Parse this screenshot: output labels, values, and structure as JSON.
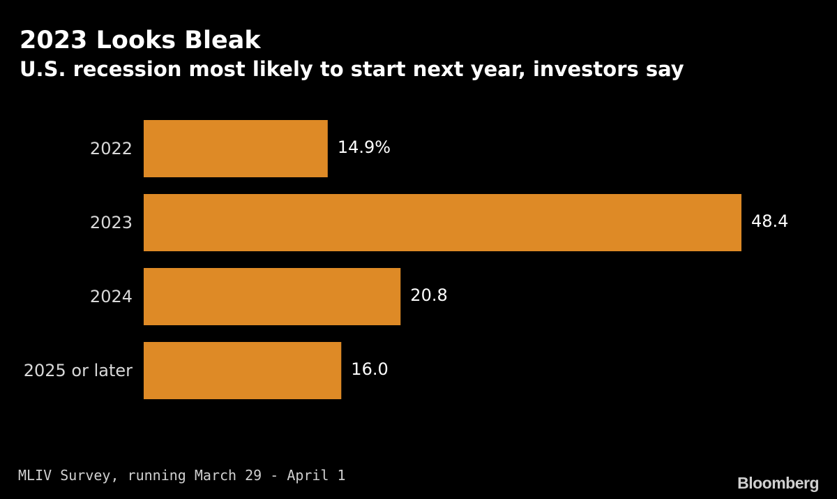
{
  "header": {
    "title": "2023 Looks Bleak",
    "subtitle": "U.S. recession most likely to start next year, investors say"
  },
  "footer": {
    "source": "MLIV Survey, running March 29 - April 1",
    "brand": "Bloomberg"
  },
  "colors": {
    "background": "#000000",
    "bar": "#de8a26",
    "text": "#ffffff"
  },
  "chart_data": {
    "type": "bar",
    "orientation": "horizontal",
    "title": "2023 Looks Bleak",
    "subtitle": "U.S. recession most likely to start next year, investors say",
    "categories": [
      "2022",
      "2023",
      "2024",
      "2025 or later"
    ],
    "values": [
      14.9,
      48.4,
      20.8,
      16.0
    ],
    "value_labels": [
      "14.9%",
      "48.4",
      "20.8",
      "16.0"
    ],
    "unit": "%",
    "xlabel": "",
    "ylabel": "",
    "xlim": [
      0,
      48.4
    ],
    "grid": false,
    "legend": "none"
  }
}
